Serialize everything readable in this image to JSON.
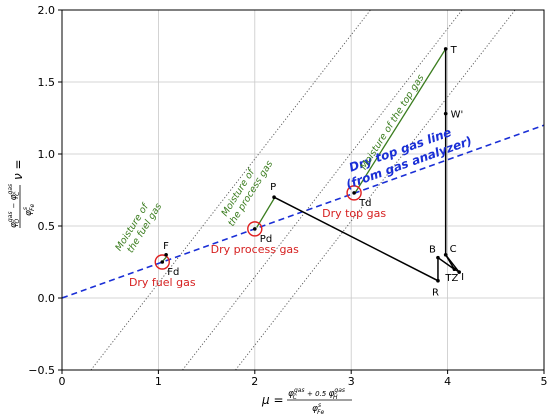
{
  "chart_data": {
    "type": "line",
    "title": "",
    "xlim": [
      0,
      5
    ],
    "ylim": [
      -0.5,
      2.0
    ],
    "x_ticks": [
      0,
      1,
      2,
      3,
      4,
      5
    ],
    "y_ticks": [
      -0.5,
      0.0,
      0.5,
      1.0,
      1.5,
      2.0
    ],
    "x_tick_labels": [
      "0",
      "1",
      "2",
      "3",
      "4",
      "5"
    ],
    "y_tick_labels": [
      "−0.5",
      "0.0",
      "0.5",
      "1.0",
      "1.5",
      "2.0"
    ],
    "grid": true,
    "xlabel": {
      "main": "μ =",
      "num_a": "φ",
      "num_a_sup": "gas",
      "num_a_sub": "C",
      "num_plus": " + 0.5 ",
      "num_b": "φ",
      "num_b_sup": "gas",
      "num_b_sub": "H",
      "den": "φ",
      "den_sup": "s",
      "den_sub": "Fe"
    },
    "ylabel": {
      "main": "ν =",
      "num_a": "φ",
      "num_a_sup": "gas",
      "num_a_sub": "O",
      "num_minus": " − ",
      "num_b": "φ",
      "num_b_sup": "gas",
      "num_b_sub": "C",
      "den": "φ",
      "den_sup": "s",
      "den_sub": "Fe"
    },
    "dotted_lines": [
      {
        "x0": 0.3,
        "y0": -0.5,
        "x1": 3.2,
        "y1": 2.0
      },
      {
        "x0": 1.25,
        "y0": -0.5,
        "x1": 4.15,
        "y1": 2.0
      },
      {
        "x0": 1.8,
        "y0": -0.5,
        "x1": 4.7,
        "y1": 2.0
      }
    ],
    "gas_line": {
      "x0": 0,
      "y0": 0,
      "x1": 5,
      "y1": 1.2,
      "label_line1": "Dry top gas line",
      "label_line2": "(from gas analyzer)"
    },
    "green_lines": [
      {
        "x0": 1.05,
        "y0": 0.26,
        "x1": 1.09,
        "y1": 0.29,
        "label_line1": "Moisture of",
        "label_line2": "the fuel gas"
      },
      {
        "x0": 2.02,
        "y0": 0.49,
        "x1": 2.2,
        "y1": 0.69,
        "label_line1": "Moisture of",
        "label_line2": "the process gas"
      },
      {
        "x0": 3.04,
        "y0": 0.73,
        "x1": 3.98,
        "y1": 1.73,
        "label_line1": "Moisture of the top gas",
        "label_line2": ""
      }
    ],
    "path_points": [
      {
        "label": "P",
        "x": 2.2,
        "y": 0.7
      },
      {
        "label": "R",
        "x": 3.9,
        "y": 0.12
      },
      {
        "label": "B",
        "x": 3.9,
        "y": 0.28
      },
      {
        "label": "TZ",
        "x": 4.07,
        "y": 0.2
      },
      {
        "label": "C",
        "x": 3.98,
        "y": 0.3
      },
      {
        "label": "W'",
        "x": 3.98,
        "y": 1.28
      },
      {
        "label": "T",
        "x": 3.98,
        "y": 1.73
      }
    ],
    "extra_points": [
      {
        "label": "I",
        "x": 4.12,
        "y": 0.18
      },
      {
        "label": "F",
        "x": 1.08,
        "y": 0.3
      }
    ],
    "circled_points": [
      {
        "label": "Fd",
        "x": 1.04,
        "y": 0.25,
        "red_label": "Dry fuel gas"
      },
      {
        "label": "Pd",
        "x": 2.0,
        "y": 0.48,
        "red_label": "Dry process gas"
      },
      {
        "label": "Td",
        "x": 3.03,
        "y": 0.73,
        "red_label": "Dry top gas"
      }
    ],
    "colors": {
      "gas_line": "#1a2fd6",
      "green": "#3b7d1f",
      "red": "#e02020",
      "path": "#000000",
      "grid": "#c8c8c8"
    }
  }
}
